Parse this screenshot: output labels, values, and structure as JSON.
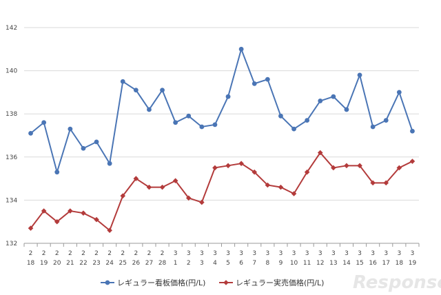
{
  "chart_data": {
    "type": "line",
    "title": "",
    "xlabel": "",
    "ylabel": "",
    "ylim": [
      132,
      142
    ],
    "yticks": [
      132,
      134,
      136,
      138,
      140,
      142
    ],
    "grid": "horizontal",
    "legend_position": "bottom",
    "categories": [
      {
        "m": "2",
        "d": "18"
      },
      {
        "m": "2",
        "d": "19"
      },
      {
        "m": "2",
        "d": "20"
      },
      {
        "m": "2",
        "d": "21"
      },
      {
        "m": "2",
        "d": "22"
      },
      {
        "m": "2",
        "d": "23"
      },
      {
        "m": "2",
        "d": "24"
      },
      {
        "m": "2",
        "d": "25"
      },
      {
        "m": "2",
        "d": "26"
      },
      {
        "m": "2",
        "d": "27"
      },
      {
        "m": "2",
        "d": "28"
      },
      {
        "m": "3",
        "d": "1"
      },
      {
        "m": "3",
        "d": "2"
      },
      {
        "m": "3",
        "d": "3"
      },
      {
        "m": "3",
        "d": "4"
      },
      {
        "m": "3",
        "d": "5"
      },
      {
        "m": "3",
        "d": "6"
      },
      {
        "m": "3",
        "d": "7"
      },
      {
        "m": "3",
        "d": "8"
      },
      {
        "m": "3",
        "d": "9"
      },
      {
        "m": "3",
        "d": "10"
      },
      {
        "m": "3",
        "d": "11"
      },
      {
        "m": "3",
        "d": "12"
      },
      {
        "m": "3",
        "d": "13"
      },
      {
        "m": "3",
        "d": "14"
      },
      {
        "m": "3",
        "d": "15"
      },
      {
        "m": "3",
        "d": "16"
      },
      {
        "m": "3",
        "d": "17"
      },
      {
        "m": "3",
        "d": "18"
      },
      {
        "m": "3",
        "d": "19"
      }
    ],
    "series": [
      {
        "name": "レギュラー看板価格(円/L)",
        "color": "#4a75b5",
        "marker": "circle",
        "values": [
          137.1,
          137.6,
          135.3,
          137.3,
          136.4,
          136.7,
          135.7,
          139.5,
          139.1,
          138.2,
          139.1,
          137.6,
          137.9,
          137.4,
          137.5,
          138.8,
          141.0,
          139.4,
          139.6,
          137.9,
          137.3,
          137.7,
          138.6,
          138.8,
          138.2,
          139.8,
          137.4,
          137.7,
          139.0,
          137.2
        ]
      },
      {
        "name": "レギュラー実売価格(円/L)",
        "color": "#b33b3b",
        "marker": "diamond",
        "values": [
          132.7,
          133.5,
          133.0,
          133.5,
          133.4,
          133.1,
          132.6,
          134.2,
          135.0,
          134.6,
          134.6,
          134.9,
          134.1,
          133.9,
          135.5,
          135.6,
          135.7,
          135.3,
          134.7,
          134.6,
          134.3,
          135.3,
          136.2,
          135.5,
          135.6,
          135.6,
          134.8,
          134.8,
          135.5,
          135.8
        ]
      }
    ]
  },
  "watermark": "Response."
}
